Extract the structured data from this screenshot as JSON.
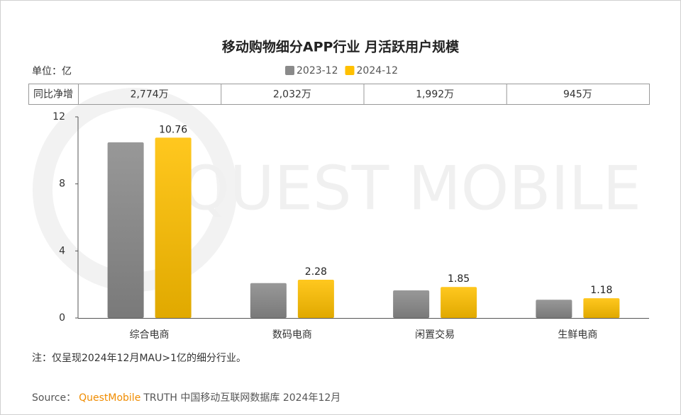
{
  "chart_data": {
    "type": "bar",
    "title": "移动购物细分APP行业 月活跃用户规模",
    "unit_label": "单位：亿",
    "categories": [
      "综合电商",
      "数码电商",
      "闲置交易",
      "生鲜电商"
    ],
    "series": [
      {
        "name": "2023-12",
        "color": "#8a8a8a",
        "values": [
          10.48,
          2.08,
          1.65,
          1.09
        ],
        "show_labels": false
      },
      {
        "name": "2024-12",
        "color": "#ffc000",
        "values": [
          10.76,
          2.28,
          1.85,
          1.18
        ],
        "show_labels": true
      }
    ],
    "ylim": [
      0,
      12
    ],
    "yticks": [
      0,
      4,
      8,
      12
    ],
    "growth_table": {
      "label": "同比净增",
      "values": [
        "2,774万",
        "2,032万",
        "1,992万",
        "945万"
      ]
    },
    "note": "注：仅呈现2024年12月MAU>1亿的细分行业。",
    "source": {
      "prefix": "Source：",
      "brand": "QuestMobile",
      "text": "TRUTH 中国移动互联网数据库 2024年12月"
    },
    "watermark": "QUEST MOBILE"
  }
}
